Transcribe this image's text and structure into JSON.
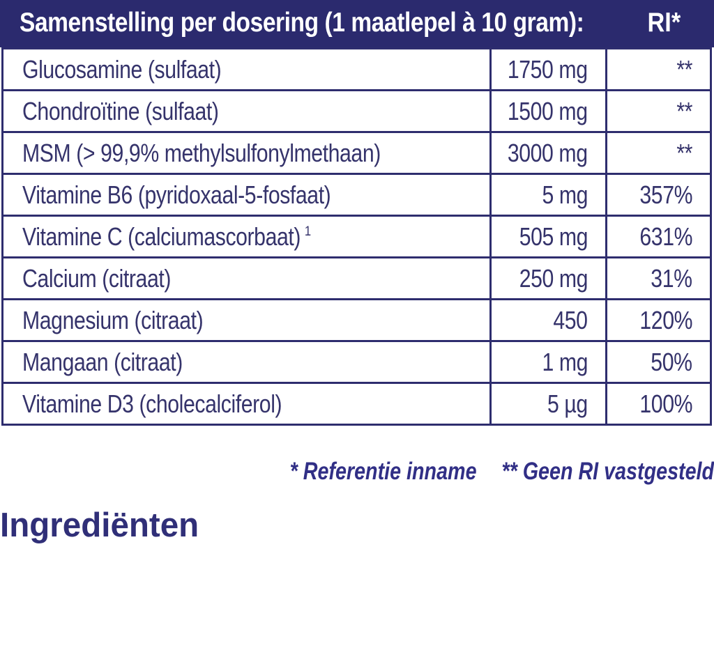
{
  "colors": {
    "header_bg": "#2b2a6e",
    "header_text": "#ffffff",
    "table_text": "#35336b",
    "border": "#2e2d6e",
    "row_bg": "#ffffff",
    "footnote_text": "#312f86",
    "heading_text": "#302f78"
  },
  "table": {
    "header": {
      "title": "Samenstelling per dosering (1 maatlepel à 10 gram):",
      "ri_label": "RI*"
    },
    "rows": [
      {
        "name": "Glucosamine (sulfaat)",
        "amount": "1750 mg",
        "ri": "**"
      },
      {
        "name": "Chondroïtine (sulfaat)",
        "amount": "1500 mg",
        "ri": "**"
      },
      {
        "name": "MSM (> 99,9% methylsulfonylmethaan)",
        "amount": "3000 mg",
        "ri": "**"
      },
      {
        "name": "Vitamine B6 (pyridoxaal-5-fosfaat)",
        "amount": "5 mg",
        "ri": "357%"
      },
      {
        "name": "Vitamine C (calciumascorbaat)",
        "sup": "1",
        "amount": "505 mg",
        "ri": "631%"
      },
      {
        "name": "Calcium (citraat)",
        "amount": "250 mg",
        "ri": "31%"
      },
      {
        "name": "Magnesium (citraat)",
        "amount": "450",
        "ri": "120%"
      },
      {
        "name": "Mangaan (citraat)",
        "amount": "1 mg",
        "ri": "50%"
      },
      {
        "name": "Vitamine D3 (cholecalciferol)",
        "amount": "5 µg",
        "ri": "100%"
      }
    ]
  },
  "footnote": {
    "reference": "* Referentie inname",
    "no_ri": "** Geen RI vastgesteld"
  },
  "section_heading": "Ingrediënten"
}
